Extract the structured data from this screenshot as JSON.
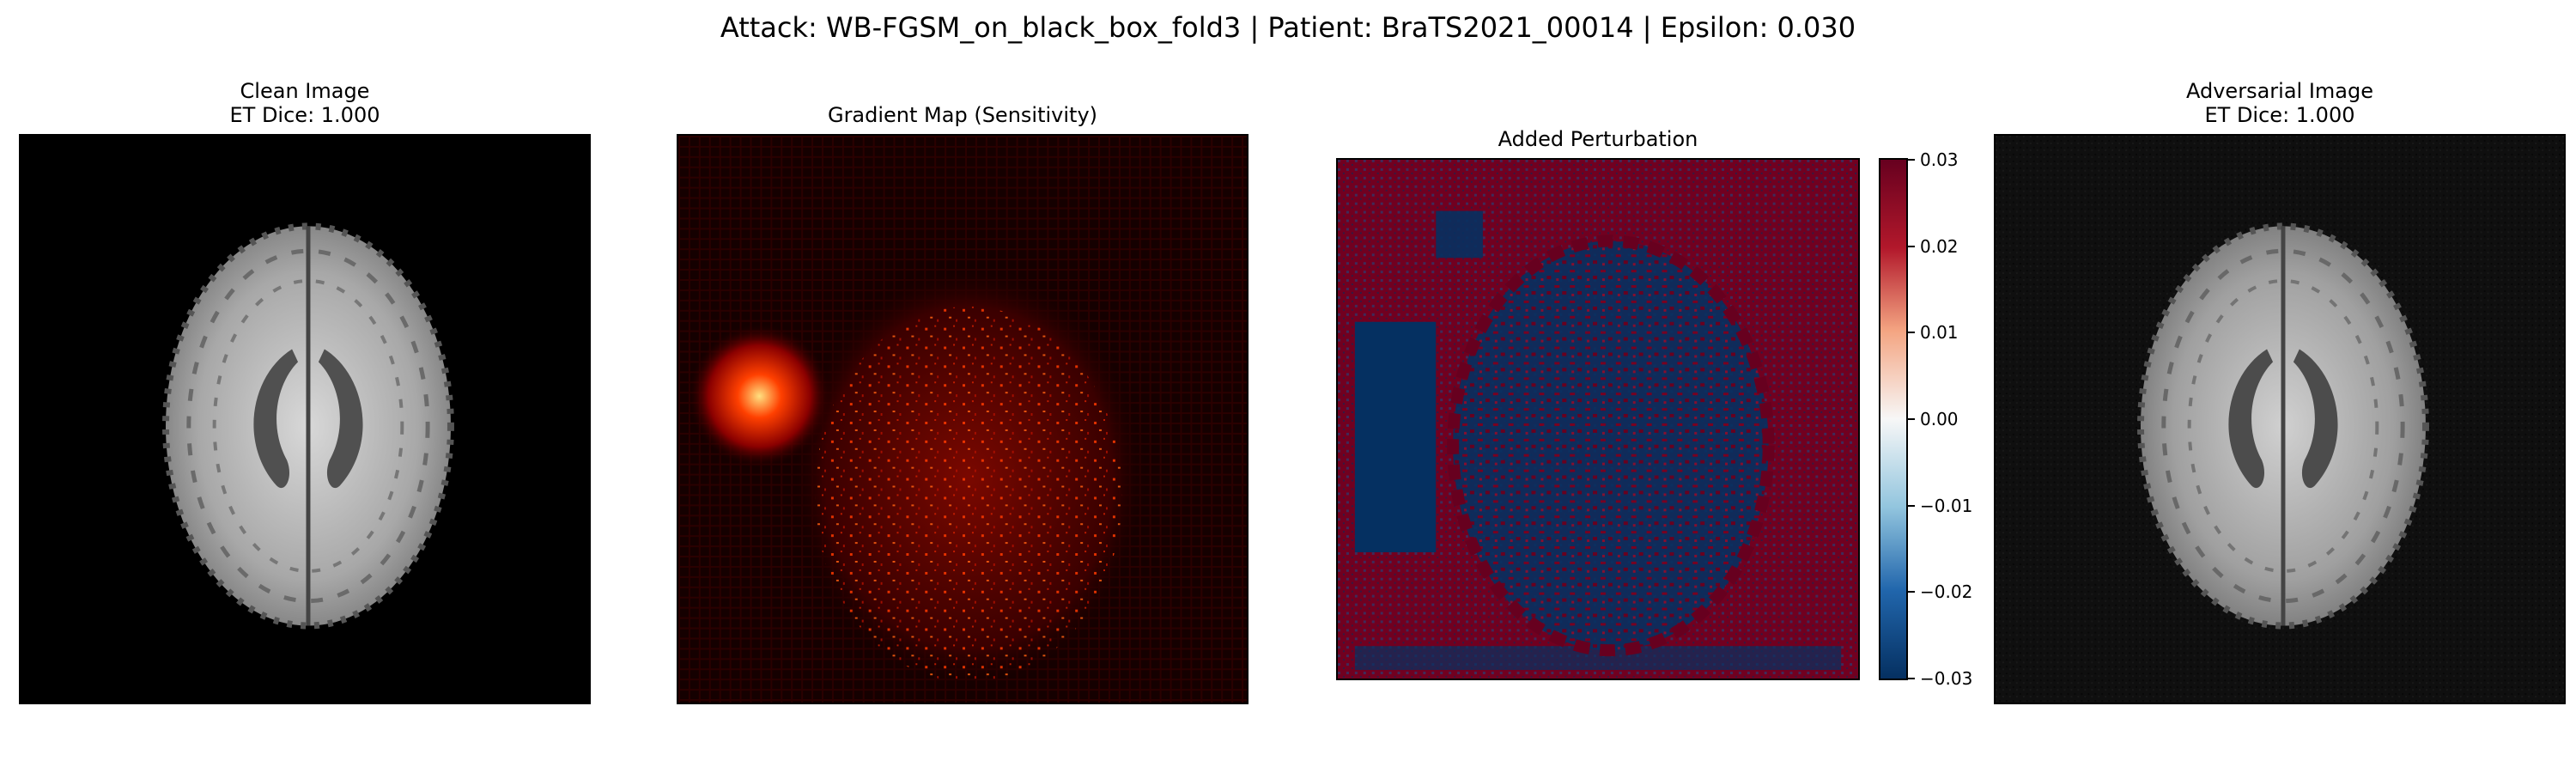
{
  "figure": {
    "suptitle": "Attack: WB-FGSM_on_black_box_fold3 | Patient: BraTS2021_00014 | Epsilon: 0.030"
  },
  "chart_data": [
    {
      "type": "heatmap",
      "panel": "clean",
      "title": "Clean Image",
      "subtitle": "ET Dice: 1.000",
      "colormap": "gray",
      "content": "axial brain MRI slice"
    },
    {
      "type": "heatmap",
      "panel": "gradient",
      "title": "Gradient Map (Sensitivity)",
      "colormap": "hot",
      "content": "gradient magnitude map"
    },
    {
      "type": "heatmap",
      "panel": "perturbation",
      "title": "Added Perturbation",
      "colormap": "RdBu_r",
      "vmin": -0.03,
      "vmax": 0.03,
      "colorbar_ticks": [
        "0.03",
        "0.02",
        "0.01",
        "0.00",
        "−0.01",
        "−0.02",
        "−0.03"
      ]
    },
    {
      "type": "heatmap",
      "panel": "adversarial",
      "title": "Adversarial Image",
      "subtitle": "ET Dice: 1.000",
      "colormap": "gray",
      "content": "perturbed axial brain MRI slice"
    }
  ]
}
